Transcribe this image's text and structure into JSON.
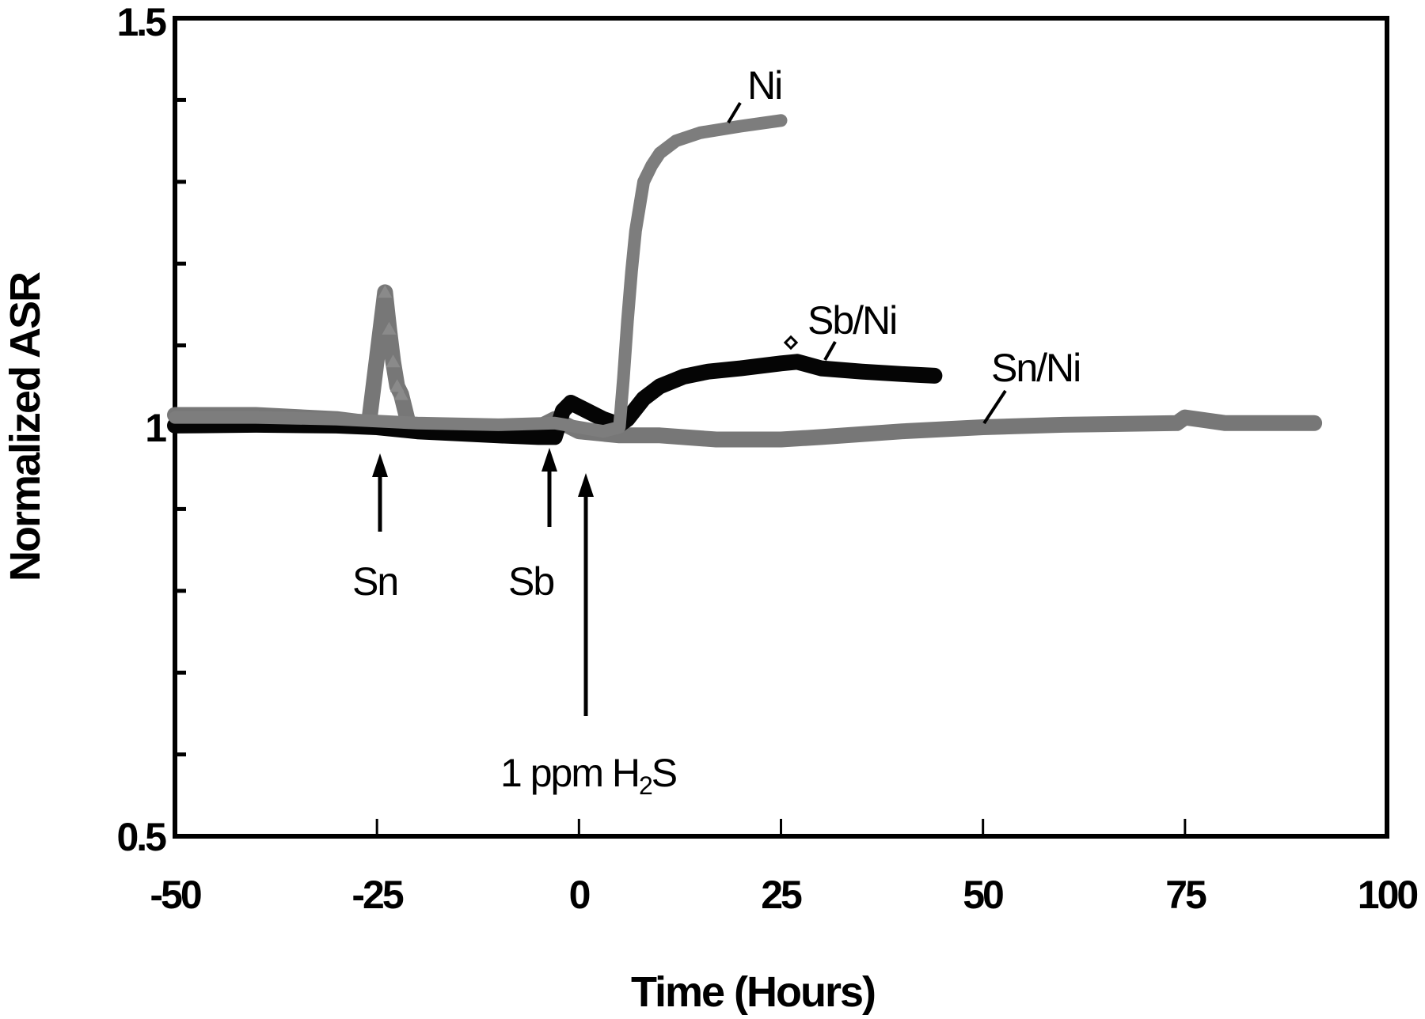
{
  "chart_data": {
    "type": "line",
    "title": "",
    "xlabel": "Time (Hours)",
    "ylabel": "Normalized ASR",
    "xlim": [
      -50,
      100
    ],
    "ylim": [
      0.5,
      1.5
    ],
    "x_ticks": [
      -50,
      -25,
      0,
      25,
      50,
      75,
      100
    ],
    "x_tick_labels": [
      "-50",
      "-25",
      "0",
      "25",
      "50",
      "75",
      "100"
    ],
    "y_ticks": [
      0.5,
      0.6,
      0.7,
      0.8,
      0.9,
      1.0,
      1.1,
      1.2,
      1.3,
      1.4,
      1.5
    ],
    "y_tick_labels": [
      "0.5",
      "",
      "",
      "",
      "",
      "1",
      "",
      "",
      "",
      "",
      "1.5"
    ],
    "grid": false,
    "legend": "inline labels",
    "series": [
      {
        "name": "Ni",
        "color": "#7a7a7a",
        "x": [
          -50,
          -40,
          -30,
          -20,
          -10,
          -3,
          0,
          3,
          5,
          5.5,
          6,
          6.5,
          7,
          7.5,
          8,
          9,
          10,
          12,
          15,
          20,
          25
        ],
        "y": [
          1.012,
          1.012,
          1.01,
          1.005,
          1.003,
          1.005,
          1.0,
          0.995,
          1.0,
          1.06,
          1.13,
          1.19,
          1.24,
          1.27,
          1.3,
          1.32,
          1.335,
          1.35,
          1.36,
          1.368,
          1.375
        ]
      },
      {
        "name": "Sb/Ni",
        "color": "#000000",
        "x": [
          -50,
          -40,
          -30,
          -25,
          -20,
          -10,
          -5,
          -3,
          -2,
          -1,
          1,
          3,
          5,
          6,
          8,
          10,
          13,
          16,
          20,
          25,
          27,
          30,
          35,
          40,
          44
        ],
        "y": [
          1.002,
          1.003,
          1.002,
          1.0,
          0.995,
          0.99,
          0.988,
          0.988,
          1.02,
          1.03,
          1.02,
          1.01,
          1.003,
          1.01,
          1.035,
          1.05,
          1.062,
          1.068,
          1.072,
          1.078,
          1.08,
          1.072,
          1.068,
          1.065,
          1.063
        ]
      },
      {
        "name": "Sn/Ni",
        "color": "#777777",
        "x": [
          -50,
          -40,
          -30,
          -26,
          -24,
          -23.5,
          -23,
          -22.5,
          -22,
          -21,
          -15,
          -10,
          -5,
          -3,
          0,
          5,
          10,
          17,
          25,
          30,
          40,
          50,
          60,
          74,
          75,
          80,
          91
        ],
        "y": [
          1.015,
          1.015,
          1.01,
          1.005,
          1.165,
          1.12,
          1.08,
          1.05,
          1.04,
          1.0,
          1.0,
          1.0,
          1.0,
          1.01,
          0.995,
          0.99,
          0.99,
          0.985,
          0.985,
          0.988,
          0.995,
          1.0,
          1.003,
          1.005,
          1.012,
          1.005,
          1.005
        ]
      }
    ],
    "annotations": [
      {
        "text": "Ni",
        "x": 23,
        "y": 1.42
      },
      {
        "text": "Sb/Ni",
        "x": 32,
        "y": 1.12
      },
      {
        "text": "Sn/Ni",
        "x": 58,
        "y": 1.06
      },
      {
        "text": "Sn",
        "x": -25,
        "y": 0.83,
        "arrow_to": {
          "x": -25,
          "y": 0.96
        }
      },
      {
        "text": "Sb",
        "x": -4,
        "y": 0.83,
        "arrow_to": {
          "x": -3,
          "y": 0.98
        }
      },
      {
        "text": "1 ppm H2S",
        "x": 2,
        "y": 0.71,
        "arrow_to": {
          "x": 1,
          "y": 0.94
        }
      }
    ]
  },
  "labels": {
    "xlabel": "Time (Hours)",
    "ylabel": "Normalized ASR",
    "y_top": "1.5",
    "y_mid": "1",
    "y_bot": "0.5",
    "x_ticks": [
      "-50",
      "-25",
      "0",
      "25",
      "50",
      "75",
      "100"
    ],
    "series_ni": "Ni",
    "series_sbni": "Sb/Ni",
    "series_snni": "Sn/Ni",
    "event_sn": "Sn",
    "event_sb": "Sb",
    "event_h2s_prefix": "1 ppm H",
    "event_h2s_sub": "2",
    "event_h2s_suffix": "S"
  }
}
